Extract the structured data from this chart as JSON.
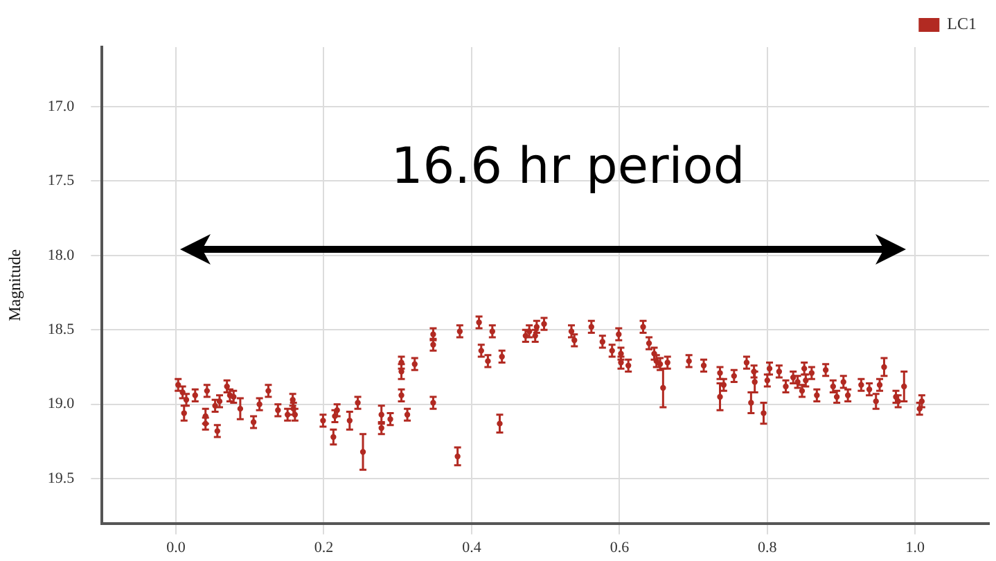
{
  "chart_data": {
    "type": "scatter",
    "ylabel": "Magnitude",
    "annotations": [
      "16.6 hr period"
    ],
    "legend": "top right",
    "grid": true,
    "marker": "circle",
    "xlim": [
      -0.1,
      1.1
    ],
    "xticks": [
      {
        "value": 0,
        "label": "0.0"
      },
      0.2,
      0.4,
      0.6,
      0.8,
      {
        "value": 1,
        "label": "1.0"
      }
    ],
    "ylim": [
      19.8,
      16.6
    ],
    "yticks": [
      {
        "value": 17,
        "label": "17.0"
      },
      17.5,
      {
        "value": 18,
        "label": "18.0"
      },
      18.5,
      {
        "value": 19,
        "label": "19.0"
      },
      19.5
    ],
    "series": [
      {
        "name": "LC1",
        "color": "#b22a22",
        "x": [
          0.003,
          0.009,
          0.011,
          0.014,
          0.026,
          0.04,
          0.04,
          0.042,
          0.053,
          0.056,
          0.059,
          0.069,
          0.073,
          0.078,
          0.087,
          0.105,
          0.113,
          0.125,
          0.138,
          0.151,
          0.158,
          0.159,
          0.161,
          0.199,
          0.213,
          0.215,
          0.218,
          0.235,
          0.246,
          0.253,
          0.278,
          0.278,
          0.29,
          0.305,
          0.305,
          0.305,
          0.313,
          0.323,
          0.348,
          0.348,
          0.348,
          0.381,
          0.384,
          0.41,
          0.413,
          0.422,
          0.428,
          0.438,
          0.441,
          0.473,
          0.478,
          0.486,
          0.488,
          0.498,
          0.535,
          0.539,
          0.562,
          0.577,
          0.59,
          0.599,
          0.602,
          0.602,
          0.612,
          0.632,
          0.64,
          0.647,
          0.65,
          0.655,
          0.659,
          0.665,
          0.694,
          0.714,
          0.736,
          0.736,
          0.741,
          0.755,
          0.772,
          0.778,
          0.782,
          0.783,
          0.795,
          0.8,
          0.803,
          0.816,
          0.825,
          0.835,
          0.841,
          0.847,
          0.85,
          0.852,
          0.86,
          0.867,
          0.879,
          0.889,
          0.894,
          0.903,
          0.909,
          0.927,
          0.938,
          0.947,
          0.952,
          0.958,
          0.974,
          0.977,
          0.985,
          1.006,
          1.009
        ],
        "values": [
          18.87,
          18.92,
          19.06,
          18.97,
          18.94,
          19.08,
          19.13,
          18.91,
          19.01,
          19.18,
          18.98,
          18.88,
          18.94,
          18.95,
          19.03,
          19.12,
          19.0,
          18.91,
          19.04,
          19.07,
          18.97,
          19.03,
          19.07,
          19.11,
          19.22,
          19.08,
          19.04,
          19.11,
          18.99,
          19.32,
          19.16,
          19.07,
          19.1,
          18.78,
          18.94,
          18.72,
          19.07,
          18.73,
          18.53,
          18.6,
          18.99,
          19.35,
          18.51,
          18.45,
          18.64,
          18.71,
          18.51,
          19.13,
          18.68,
          18.54,
          18.51,
          18.54,
          18.48,
          18.46,
          18.51,
          18.57,
          18.48,
          18.58,
          18.64,
          18.53,
          18.66,
          18.72,
          18.74,
          18.48,
          18.59,
          18.66,
          18.71,
          18.73,
          18.89,
          18.72,
          18.71,
          18.74,
          18.79,
          18.95,
          18.87,
          18.81,
          18.72,
          18.99,
          18.78,
          18.85,
          19.06,
          18.84,
          18.76,
          18.78,
          18.88,
          18.82,
          18.85,
          18.91,
          18.76,
          18.84,
          18.79,
          18.94,
          18.77,
          18.88,
          18.95,
          18.85,
          18.94,
          18.87,
          18.9,
          18.98,
          18.87,
          18.75,
          18.95,
          18.98,
          18.88,
          19.03,
          18.98
        ],
        "errors": [
          0.04,
          0.04,
          0.05,
          0.04,
          0.04,
          0.05,
          0.04,
          0.04,
          0.04,
          0.04,
          0.04,
          0.04,
          0.04,
          0.04,
          0.07,
          0.04,
          0.04,
          0.04,
          0.04,
          0.04,
          0.04,
          0.04,
          0.04,
          0.04,
          0.05,
          0.04,
          0.04,
          0.06,
          0.04,
          0.12,
          0.04,
          0.06,
          0.04,
          0.05,
          0.04,
          0.04,
          0.04,
          0.04,
          0.04,
          0.04,
          0.04,
          0.06,
          0.04,
          0.04,
          0.04,
          0.04,
          0.04,
          0.06,
          0.04,
          0.04,
          0.04,
          0.04,
          0.04,
          0.04,
          0.04,
          0.04,
          0.04,
          0.04,
          0.04,
          0.04,
          0.04,
          0.04,
          0.04,
          0.04,
          0.04,
          0.04,
          0.04,
          0.04,
          0.13,
          0.04,
          0.04,
          0.04,
          0.04,
          0.09,
          0.04,
          0.04,
          0.04,
          0.07,
          0.04,
          0.07,
          0.07,
          0.04,
          0.04,
          0.04,
          0.04,
          0.04,
          0.04,
          0.04,
          0.04,
          0.04,
          0.04,
          0.04,
          0.04,
          0.04,
          0.04,
          0.04,
          0.04,
          0.04,
          0.04,
          0.05,
          0.04,
          0.06,
          0.04,
          0.04,
          0.1,
          0.04,
          0.04
        ]
      }
    ]
  }
}
